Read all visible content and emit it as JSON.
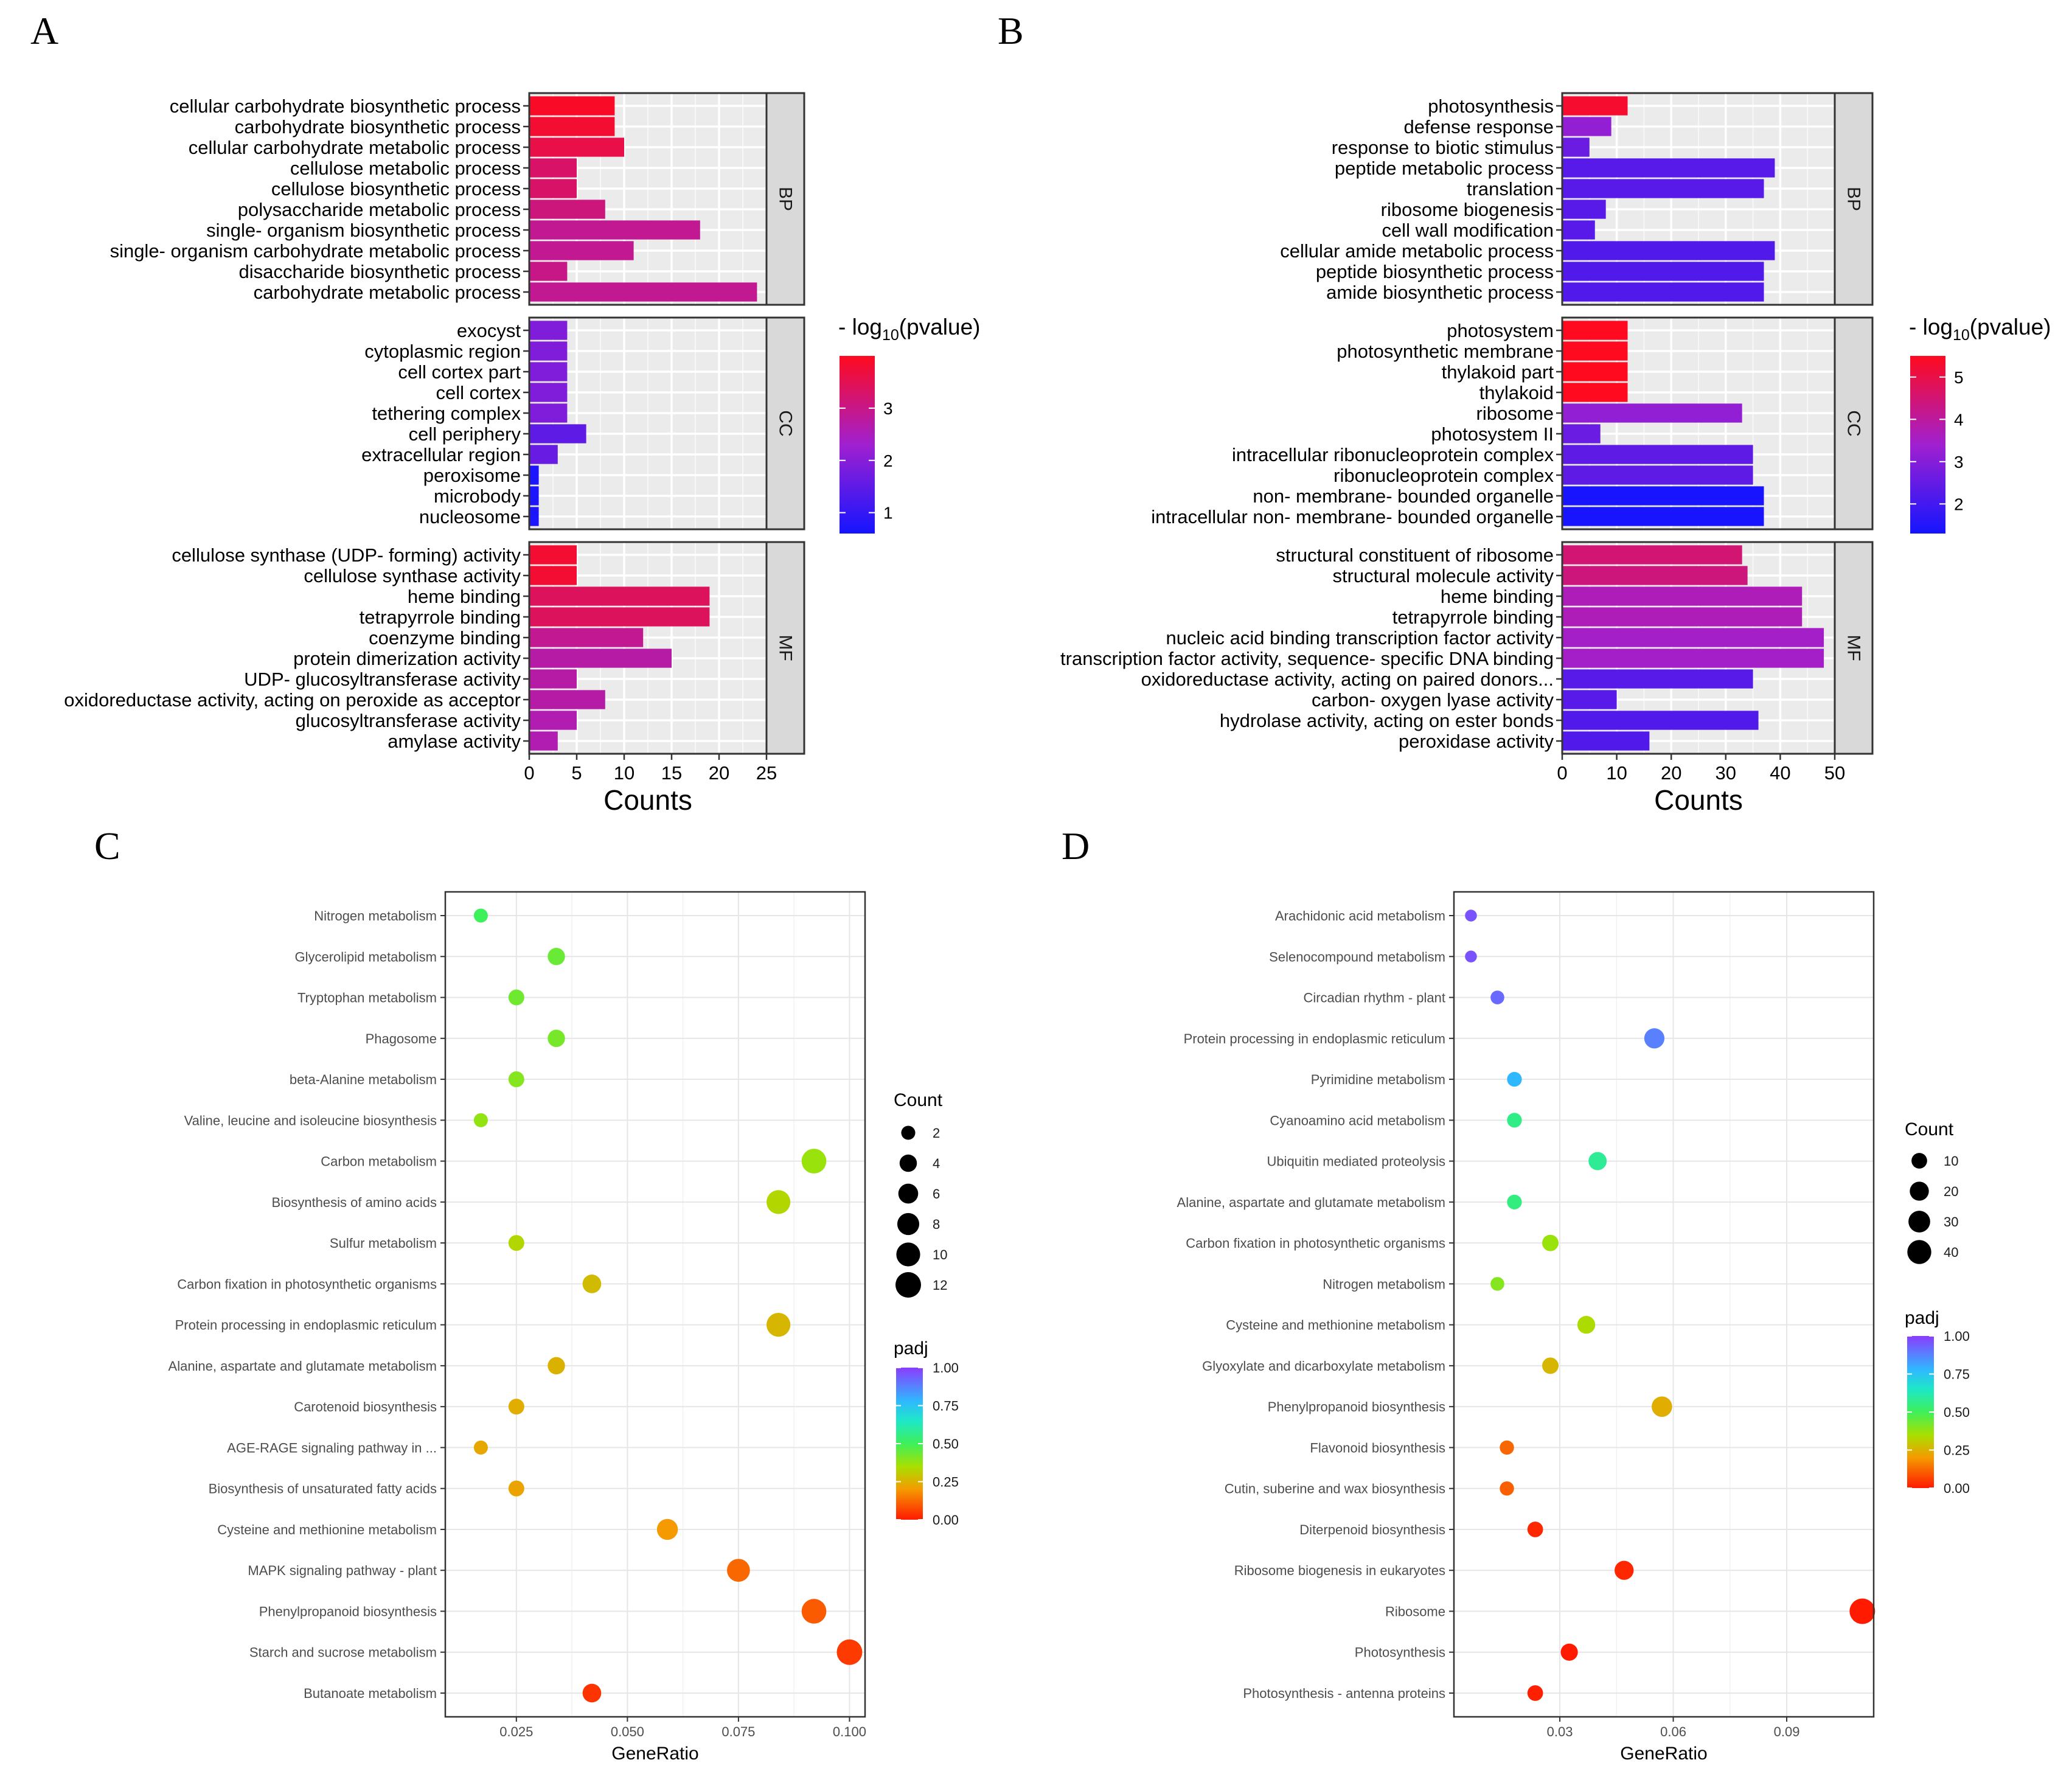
{
  "figure": {
    "panel_letters": [
      "A",
      "B",
      "C",
      "D"
    ]
  },
  "chart_data": [
    {
      "panel": "A",
      "type": "bar",
      "orientation": "horizontal",
      "xlabel": "Counts",
      "xlim": [
        0,
        25
      ],
      "xticks": [
        0,
        5,
        10,
        15,
        20,
        25
      ],
      "legend": {
        "title_prefix": "- log",
        "title_sub": "10",
        "title_suffix": "(pvalue)",
        "min": 0.6,
        "max": 4.0,
        "ticks": [
          1,
          2,
          3
        ]
      },
      "facets": [
        {
          "name": "BP",
          "categories": [
            {
              "label": "cellular carbohydrate biosynthetic process",
              "count": 9,
              "logp": 3.9
            },
            {
              "label": "carbohydrate biosynthetic process",
              "count": 9,
              "logp": 3.8
            },
            {
              "label": "cellular carbohydrate metabolic process",
              "count": 10,
              "logp": 3.6
            },
            {
              "label": "cellulose metabolic process",
              "count": 5,
              "logp": 3.3
            },
            {
              "label": "cellulose biosynthetic process",
              "count": 5,
              "logp": 3.3
            },
            {
              "label": "polysaccharide metabolic process",
              "count": 8,
              "logp": 3.1
            },
            {
              "label": "single- organism biosynthetic process",
              "count": 18,
              "logp": 2.9
            },
            {
              "label": "single- organism carbohydrate metabolic process",
              "count": 11,
              "logp": 2.9
            },
            {
              "label": "disaccharide biosynthetic process",
              "count": 4,
              "logp": 3.0
            },
            {
              "label": "carbohydrate metabolic process",
              "count": 24,
              "logp": 2.9
            }
          ]
        },
        {
          "name": "CC",
          "categories": [
            {
              "label": "exocyst",
              "count": 4,
              "logp": 1.9
            },
            {
              "label": "cytoplasmic region",
              "count": 4,
              "logp": 1.9
            },
            {
              "label": "cell cortex part",
              "count": 4,
              "logp": 1.9
            },
            {
              "label": "cell cortex",
              "count": 4,
              "logp": 1.9
            },
            {
              "label": "tethering complex",
              "count": 4,
              "logp": 1.9
            },
            {
              "label": "cell periphery",
              "count": 6,
              "logp": 1.5
            },
            {
              "label": "extracellular region",
              "count": 3,
              "logp": 1.6
            },
            {
              "label": "peroxisome",
              "count": 1,
              "logp": 0.7
            },
            {
              "label": "microbody",
              "count": 1,
              "logp": 0.7
            },
            {
              "label": "nucleosome",
              "count": 1,
              "logp": 0.7
            }
          ]
        },
        {
          "name": "MF",
          "categories": [
            {
              "label": "cellulose synthase (UDP- forming) activity",
              "count": 5,
              "logp": 3.8
            },
            {
              "label": "cellulose synthase activity",
              "count": 5,
              "logp": 3.8
            },
            {
              "label": "heme binding",
              "count": 19,
              "logp": 3.4
            },
            {
              "label": "tetrapyrrole binding",
              "count": 19,
              "logp": 3.4
            },
            {
              "label": "coenzyme binding",
              "count": 12,
              "logp": 2.9
            },
            {
              "label": "protein dimerization activity",
              "count": 15,
              "logp": 2.7
            },
            {
              "label": "UDP- glucosyltransferase activity",
              "count": 5,
              "logp": 2.7
            },
            {
              "label": "oxidoreductase activity, acting on peroxide as acceptor",
              "count": 8,
              "logp": 2.7
            },
            {
              "label": "glucosyltransferase activity",
              "count": 5,
              "logp": 2.6
            },
            {
              "label": "amylase activity",
              "count": 3,
              "logp": 2.6
            }
          ]
        }
      ]
    },
    {
      "panel": "B",
      "type": "bar",
      "orientation": "horizontal",
      "xlabel": "Counts",
      "xlim": [
        0,
        50
      ],
      "xticks": [
        0,
        10,
        20,
        30,
        40,
        50
      ],
      "legend": {
        "title_prefix": "- log",
        "title_sub": "10",
        "title_suffix": "(pvalue)",
        "min": 1.3,
        "max": 5.5,
        "ticks": [
          2,
          3,
          4,
          5
        ]
      },
      "facets": [
        {
          "name": "BP",
          "categories": [
            {
              "label": "photosynthesis",
              "count": 12,
              "logp": 5.3
            },
            {
              "label": "defense response",
              "count": 9,
              "logp": 3.2
            },
            {
              "label": "response to biotic stimulus",
              "count": 5,
              "logp": 2.6
            },
            {
              "label": "peptide metabolic process",
              "count": 39,
              "logp": 2.3
            },
            {
              "label": "translation",
              "count": 37,
              "logp": 2.3
            },
            {
              "label": "ribosome biogenesis",
              "count": 8,
              "logp": 2.3
            },
            {
              "label": "cell wall modification",
              "count": 6,
              "logp": 2.3
            },
            {
              "label": "cellular amide metabolic process",
              "count": 39,
              "logp": 2.2
            },
            {
              "label": "peptide biosynthetic process",
              "count": 37,
              "logp": 2.2
            },
            {
              "label": "amide biosynthetic process",
              "count": 37,
              "logp": 2.2
            }
          ]
        },
        {
          "name": "CC",
          "categories": [
            {
              "label": "photosystem",
              "count": 12,
              "logp": 5.5
            },
            {
              "label": "photosynthetic membrane",
              "count": 12,
              "logp": 5.5
            },
            {
              "label": "thylakoid part",
              "count": 12,
              "logp": 5.5
            },
            {
              "label": "thylakoid",
              "count": 12,
              "logp": 5.5
            },
            {
              "label": "ribosome",
              "count": 33,
              "logp": 3.2
            },
            {
              "label": "photosystem II",
              "count": 7,
              "logp": 2.6
            },
            {
              "label": "intracellular ribonucleoprotein complex",
              "count": 35,
              "logp": 2.4
            },
            {
              "label": "ribonucleoprotein complex",
              "count": 35,
              "logp": 2.4
            },
            {
              "label": "non- membrane- bounded organelle",
              "count": 37,
              "logp": 1.35
            },
            {
              "label": "intracellular non- membrane- bounded organelle",
              "count": 37,
              "logp": 1.35
            }
          ]
        },
        {
          "name": "MF",
          "categories": [
            {
              "label": "structural constituent of ribosome",
              "count": 33,
              "logp": 4.5
            },
            {
              "label": "structural molecule activity",
              "count": 34,
              "logp": 4.4
            },
            {
              "label": "heme binding",
              "count": 44,
              "logp": 3.7
            },
            {
              "label": "tetrapyrrole binding",
              "count": 44,
              "logp": 3.7
            },
            {
              "label": "nucleic acid binding transcription factor activity",
              "count": 48,
              "logp": 3.5
            },
            {
              "label": "transcription factor activity, sequence- specific DNA binding",
              "count": 48,
              "logp": 3.5
            },
            {
              "label": "oxidoreductase activity, acting on paired donors...",
              "count": 35,
              "logp": 2.3
            },
            {
              "label": "carbon- oxygen lyase activity",
              "count": 10,
              "logp": 2.3
            },
            {
              "label": "hydrolase activity, acting on ester bonds",
              "count": 36,
              "logp": 2.2
            },
            {
              "label": "peroxidase activity",
              "count": 16,
              "logp": 2.2
            }
          ]
        }
      ]
    },
    {
      "panel": "C",
      "type": "scatter",
      "xlabel": "GeneRatio",
      "xlim": [
        0.009,
        0.1035
      ],
      "xticks": [
        0.025,
        0.05,
        0.075,
        0.1
      ],
      "xtick_labels": [
        "0.025",
        "0.050",
        "0.075",
        "0.100"
      ],
      "size_legend": {
        "title": "Count",
        "values": [
          2,
          4,
          6,
          8,
          10,
          12
        ]
      },
      "color_legend": {
        "title": "padj",
        "ticks": [
          1.0,
          0.75,
          0.5,
          0.25,
          0.0
        ],
        "tick_labels": [
          "1.00",
          "0.75",
          "0.50",
          "0.25",
          "0.00"
        ]
      },
      "points": [
        {
          "term": "Nitrogen metabolism",
          "ratio": 0.017,
          "count": 2,
          "padj": 0.5
        },
        {
          "term": "Glycerolipid metabolism",
          "ratio": 0.034,
          "count": 4,
          "padj": 0.44
        },
        {
          "term": "Tryptophan metabolism",
          "ratio": 0.025,
          "count": 3,
          "padj": 0.43
        },
        {
          "term": "Phagosome",
          "ratio": 0.034,
          "count": 4,
          "padj": 0.42
        },
        {
          "term": "beta-Alanine metabolism",
          "ratio": 0.025,
          "count": 3,
          "padj": 0.4
        },
        {
          "term": "Valine, leucine and isoleucine biosynthesis",
          "ratio": 0.017,
          "count": 2,
          "padj": 0.38
        },
        {
          "term": "Carbon metabolism",
          "ratio": 0.092,
          "count": 11,
          "padj": 0.37
        },
        {
          "term": "Biosynthesis of amino acids",
          "ratio": 0.084,
          "count": 10,
          "padj": 0.33
        },
        {
          "term": "Sulfur metabolism",
          "ratio": 0.025,
          "count": 3,
          "padj": 0.33
        },
        {
          "term": "Carbon fixation in photosynthetic organisms",
          "ratio": 0.042,
          "count": 5,
          "padj": 0.27
        },
        {
          "term": "Protein processing in endoplasmic reticulum",
          "ratio": 0.084,
          "count": 10,
          "padj": 0.26
        },
        {
          "term": "Alanine, aspartate and glutamate metabolism",
          "ratio": 0.034,
          "count": 4,
          "padj": 0.25
        },
        {
          "term": "Carotenoid biosynthesis",
          "ratio": 0.025,
          "count": 3,
          "padj": 0.24
        },
        {
          "term": "AGE-RAGE signaling pathway in ...",
          "ratio": 0.017,
          "count": 2,
          "padj": 0.23
        },
        {
          "term": "Biosynthesis of unsaturated fatty acids",
          "ratio": 0.025,
          "count": 3,
          "padj": 0.22
        },
        {
          "term": "Cysteine and methionine metabolism",
          "ratio": 0.059,
          "count": 7,
          "padj": 0.2
        },
        {
          "term": "MAPK signaling pathway - plant",
          "ratio": 0.075,
          "count": 9,
          "padj": 0.12
        },
        {
          "term": "Phenylpropanoid biosynthesis",
          "ratio": 0.092,
          "count": 11,
          "padj": 0.1
        },
        {
          "term": "Starch and sucrose metabolism",
          "ratio": 0.1,
          "count": 12,
          "padj": 0.05
        },
        {
          "term": "Butanoate metabolism",
          "ratio": 0.042,
          "count": 5,
          "padj": 0.04
        }
      ]
    },
    {
      "panel": "D",
      "type": "scatter",
      "xlabel": "GeneRatio",
      "xlim": [
        0.002,
        0.113
      ],
      "xticks": [
        0.03,
        0.06,
        0.09
      ],
      "xtick_labels": [
        "0.03",
        "0.06",
        "0.09"
      ],
      "size_legend": {
        "title": "Count",
        "values": [
          10,
          20,
          30,
          40
        ]
      },
      "color_legend": {
        "title": "padj",
        "ticks": [
          1.0,
          0.75,
          0.5,
          0.25,
          0.0
        ],
        "tick_labels": [
          "1.00",
          "0.75",
          "0.50",
          "0.25",
          "0.00"
        ]
      },
      "points": [
        {
          "term": "Arachidonic acid metabolism",
          "ratio": 0.0065,
          "count": 3,
          "padj": 0.96
        },
        {
          "term": "Selenocompound metabolism",
          "ratio": 0.0065,
          "count": 3,
          "padj": 0.96
        },
        {
          "term": "Circadian rhythm - plant",
          "ratio": 0.0135,
          "count": 6,
          "padj": 0.92
        },
        {
          "term": "Protein processing in endoplasmic reticulum",
          "ratio": 0.055,
          "count": 24,
          "padj": 0.88
        },
        {
          "term": "Pyrimidine metabolism",
          "ratio": 0.018,
          "count": 8,
          "padj": 0.78
        },
        {
          "term": "Cyanoamino acid metabolism",
          "ratio": 0.018,
          "count": 8,
          "padj": 0.56
        },
        {
          "term": "Ubiquitin mediated proteolysis",
          "ratio": 0.04,
          "count": 17,
          "padj": 0.58
        },
        {
          "term": "Alanine, aspartate and glutamate metabolism",
          "ratio": 0.018,
          "count": 8,
          "padj": 0.55
        },
        {
          "term": "Carbon fixation in photosynthetic organisms",
          "ratio": 0.0275,
          "count": 12,
          "padj": 0.37
        },
        {
          "term": "Nitrogen metabolism",
          "ratio": 0.0135,
          "count": 6,
          "padj": 0.4
        },
        {
          "term": "Cysteine and methionine metabolism",
          "ratio": 0.037,
          "count": 16,
          "padj": 0.34
        },
        {
          "term": "Glyoxylate and dicarboxylate metabolism",
          "ratio": 0.0275,
          "count": 12,
          "padj": 0.26
        },
        {
          "term": "Phenylpropanoid biosynthesis",
          "ratio": 0.057,
          "count": 25,
          "padj": 0.24
        },
        {
          "term": "Flavonoid biosynthesis",
          "ratio": 0.016,
          "count": 7,
          "padj": 0.12
        },
        {
          "term": "Cutin, suberine and wax biosynthesis",
          "ratio": 0.016,
          "count": 7,
          "padj": 0.11
        },
        {
          "term": "Diterpenoid biosynthesis",
          "ratio": 0.0235,
          "count": 10,
          "padj": 0.02
        },
        {
          "term": "Ribosome biogenesis in eukaryotes",
          "ratio": 0.047,
          "count": 20,
          "padj": 0.02
        },
        {
          "term": "Ribosome",
          "ratio": 0.11,
          "count": 48,
          "padj": 0.0
        },
        {
          "term": "Photosynthesis",
          "ratio": 0.0325,
          "count": 14,
          "padj": 0.0
        },
        {
          "term": "Photosynthesis - antenna proteins",
          "ratio": 0.0235,
          "count": 10,
          "padj": 0.01
        }
      ]
    }
  ]
}
